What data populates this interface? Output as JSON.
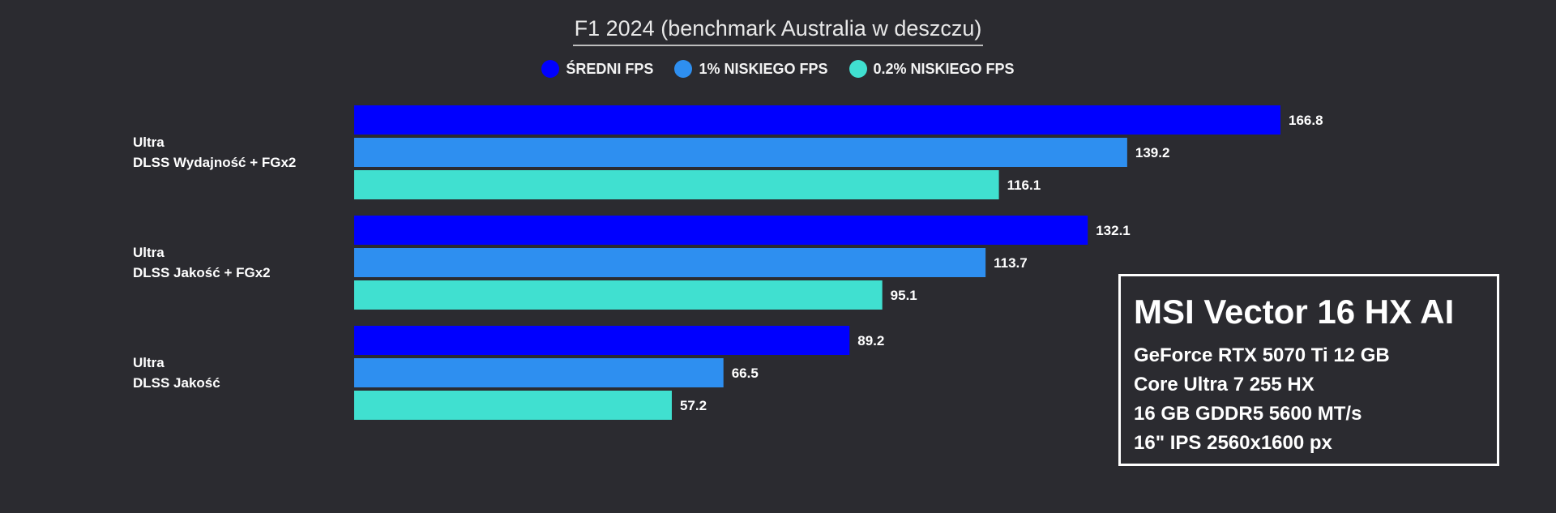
{
  "chart_data": {
    "type": "bar",
    "orientation": "horizontal",
    "title": "F1 2024 (benchmark Australia w deszczu)",
    "xlabel": "",
    "ylabel": "",
    "xlim": [
      0,
      166.8
    ],
    "grid": false,
    "legend_position": "top-center",
    "categories": [
      [
        "Ultra",
        "DLSS Wydajność + FGx2"
      ],
      [
        "Ultra",
        "DLSS Jakość + FGx2"
      ],
      [
        "Ultra",
        "DLSS Jakość"
      ]
    ],
    "series": [
      {
        "name": "ŚREDNI FPS",
        "color": "#0000ff",
        "values": [
          166.8,
          132.1,
          89.2
        ]
      },
      {
        "name": "1% NISKIEGO FPS",
        "color": "#2e8ff0",
        "values": [
          139.2,
          113.7,
          66.5
        ]
      },
      {
        "name": "0.2% NISKIEGO FPS",
        "color": "#40e0d0",
        "values": [
          116.1,
          95.1,
          57.2
        ]
      }
    ]
  },
  "info_box": {
    "title": "MSI Vector 16 HX AI",
    "lines": [
      "GeForce RTX 5070 Ti 12 GB",
      "Core Ultra 7 255 HX",
      "16 GB GDDR5 5600 MT/s",
      "16\" IPS 2560x1600 px"
    ]
  },
  "colors": {
    "background": "#2b2b30",
    "text": "#ffffff"
  }
}
